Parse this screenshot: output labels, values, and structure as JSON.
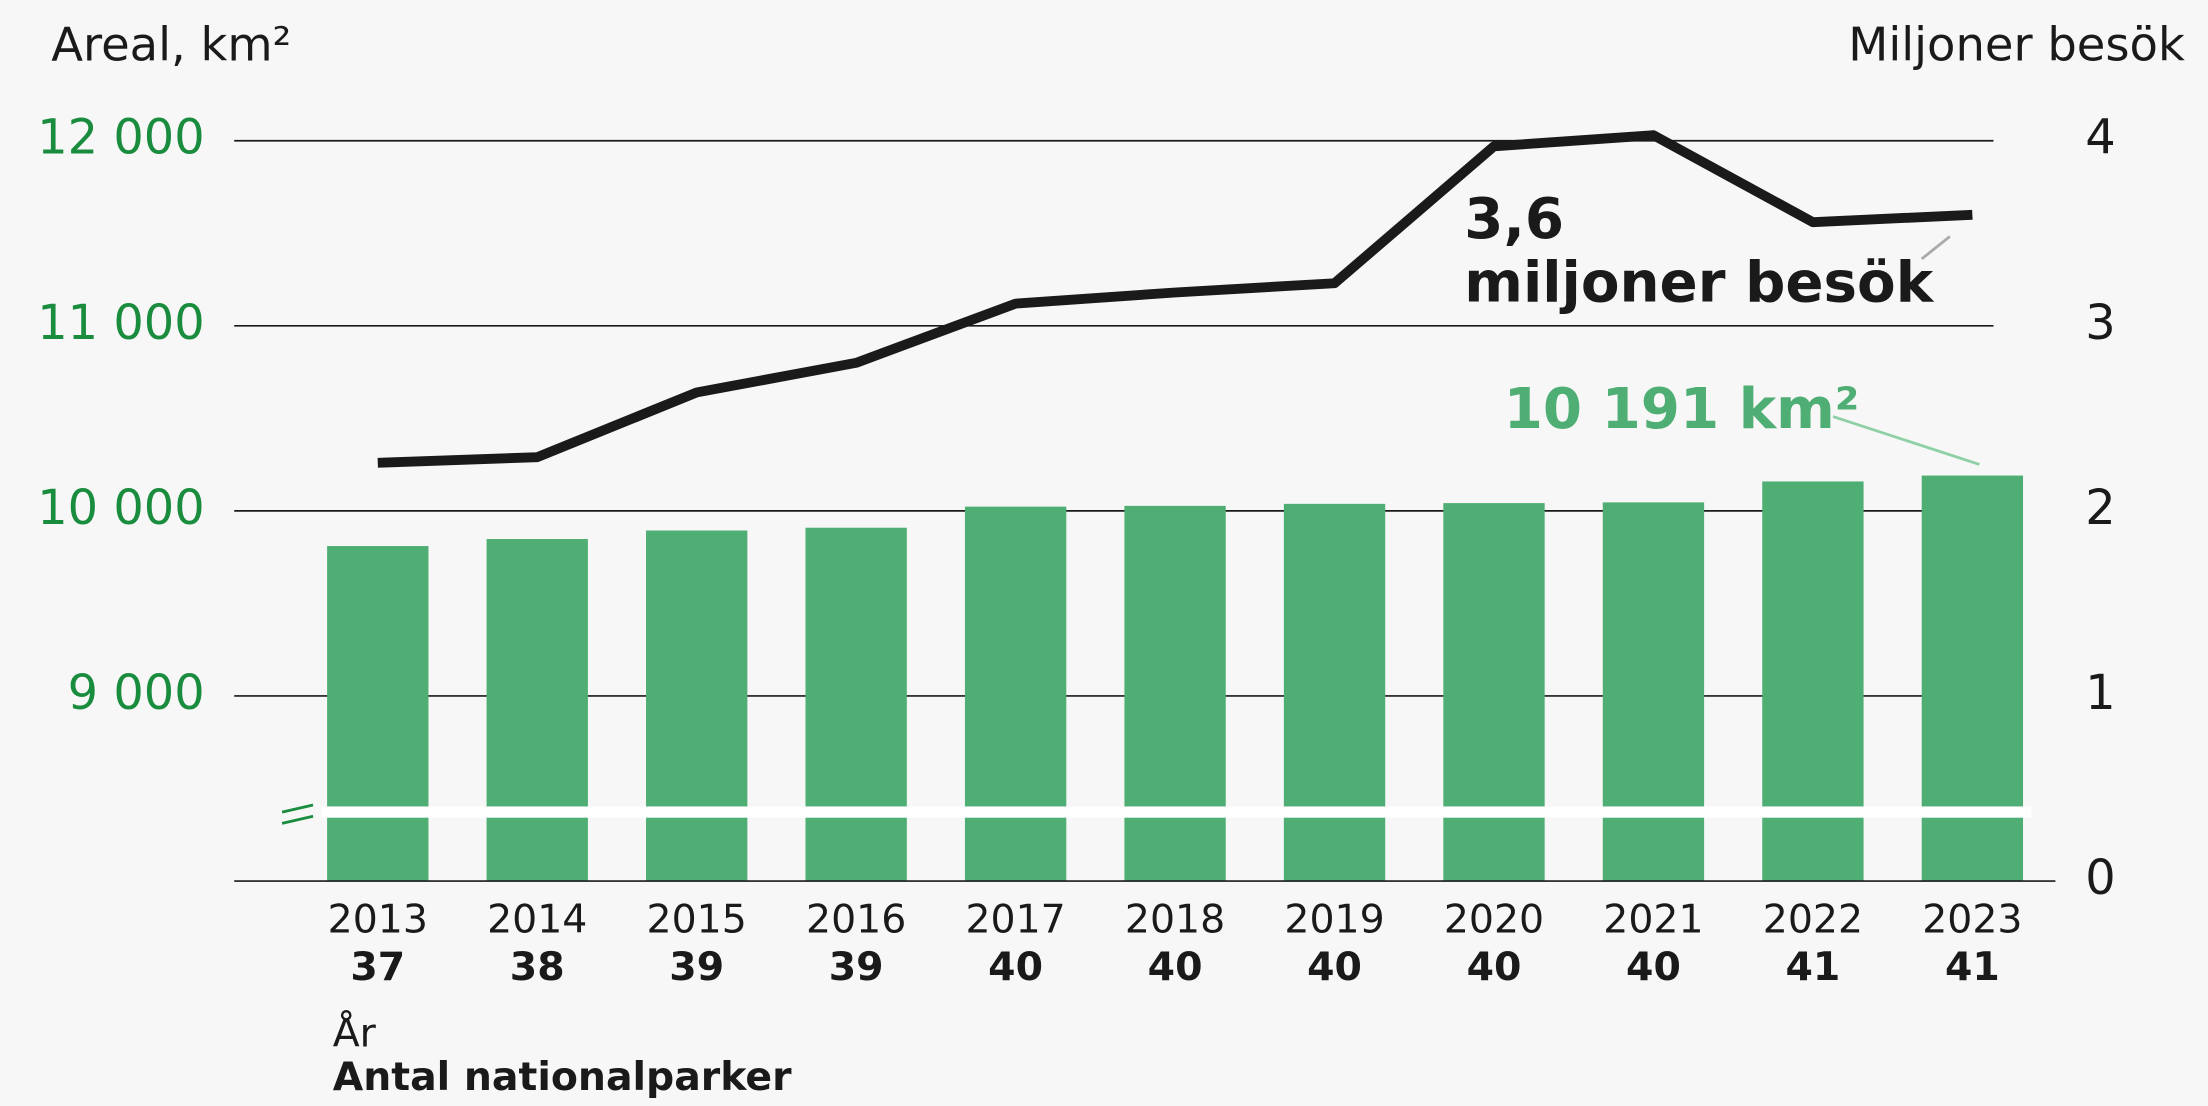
{
  "chart_data": {
    "type": "bar",
    "y_label": "Areal, km²",
    "y2_label": "Miljoner besök",
    "x_label": "År",
    "count_label": "Antal nationalparker",
    "categories": [
      "2013",
      "2014",
      "2015",
      "2016",
      "2017",
      "2018",
      "2019",
      "2020",
      "2021",
      "2022",
      "2023"
    ],
    "park_counts": [
      37,
      38,
      39,
      39,
      40,
      40,
      40,
      40,
      40,
      41,
      41
    ],
    "series": [
      {
        "type": "bar",
        "color": "#4fae73",
        "values": [
          9810,
          9848,
          9894,
          9909,
          10023,
          10027,
          10038,
          10042,
          10046,
          10159,
          10191
        ]
      },
      {
        "type": "line",
        "axis": "y2",
        "color": "#1a1a1a",
        "values": [
          2.26,
          2.29,
          2.64,
          2.8,
          3.12,
          3.18,
          3.23,
          3.97,
          4.03,
          3.56,
          3.6
        ]
      }
    ],
    "ylim": [
      8000,
      12000
    ],
    "yticks": [
      {
        "value": 9000,
        "label": "9 000"
      },
      {
        "value": 10000,
        "label": "10 000"
      },
      {
        "value": 11000,
        "label": "11 000"
      },
      {
        "value": 12000,
        "label": "12 000"
      }
    ],
    "y2lim": [
      0,
      4
    ],
    "y2ticks": [
      0,
      1,
      2,
      3,
      4
    ],
    "axis_break": true,
    "grid": true,
    "annotations": [
      {
        "text": "3,6"
      },
      {
        "text": "miljoner besök"
      },
      {
        "text": "10 191 km²"
      }
    ]
  }
}
